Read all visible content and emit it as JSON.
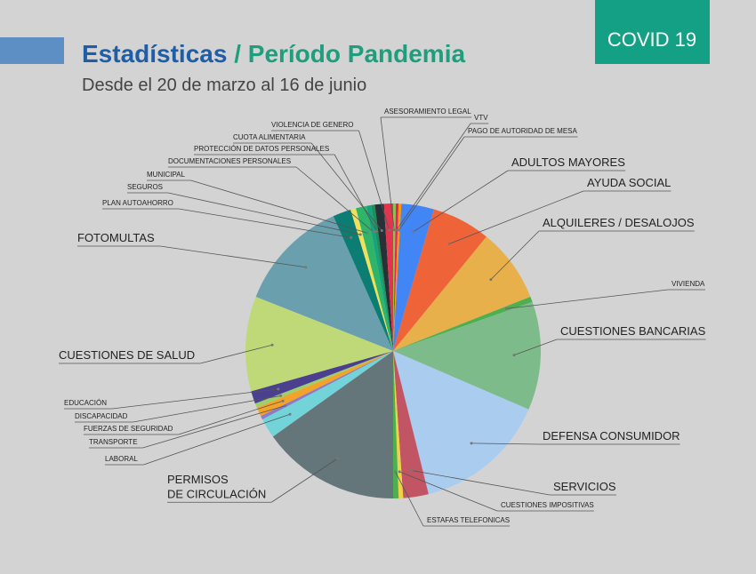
{
  "header": {
    "title_main": "Estadísticas",
    "title_rest": "/ Período Pandemia",
    "subtitle": "Desde el 20 de marzo al 16 de junio",
    "badge": "COVID 19"
  },
  "chart_data": {
    "type": "pie",
    "categories": [
      "ASESORAMIENTO LEGAL",
      "VTV",
      "PAGO DE AUTORIDAD DE MESA",
      "ADULTOS MAYORES",
      "AYUDA SOCIAL",
      "ALQUILERES / DESALOJOS",
      "VIVIENDA",
      "CUESTIONES BANCARIAS",
      "DEFENSA CONSUMIDOR",
      "SERVICIOS",
      "CUESTIONES IMPOSITIVAS",
      "ESTAFAS TELEFONICAS",
      "PERMISOS\nDE CIRCULACIÓN",
      "LABORAL",
      "TRANSPORTE",
      "FUERZAS DE SEGURIDAD",
      "DISCAPACIDAD",
      "EDUCACIÓN",
      "CUESTIONES DE SALUD",
      "FOTOMULTAS",
      "PLAN AUTOAHORRO",
      "SEGUROS",
      "MUNICIPAL",
      "DOCUMENTACIONES PERSONALES",
      "PROTECCIÓN DE DATOS PERSONALES",
      "CUOTA ALIMENTARIA",
      "VIOLENCIA DE GENERO"
    ],
    "values": [
      0.3,
      0.3,
      0.3,
      3.6,
      6.5,
      8.2,
      0.6,
      12,
      14.8,
      2.8,
      0.5,
      0.6,
      15.3,
      2.2,
      0.4,
      1,
      0.5,
      1.4,
      10.5,
      12.5,
      2,
      0.6,
      1.2,
      0.5,
      0.4,
      1,
      1
    ],
    "colors": [
      "#8bc34a",
      "#e91e63",
      "#ff9800",
      "#4285f4",
      "#ef6339",
      "#e8b04a",
      "#4caf50",
      "#7dbb8a",
      "#aacdef",
      "#c25563",
      "#f0d24a",
      "#4caf50",
      "#65767a",
      "#72d4d8",
      "#8e7cc3",
      "#f4a32a",
      "#9fcf6a",
      "#4b3f8f",
      "#bfd978",
      "#6aa0ae",
      "#0b7d73",
      "#f1e15a",
      "#2eb56a",
      "#12a37f",
      "#1f8f5a",
      "#263238",
      "#e2344f"
    ]
  }
}
